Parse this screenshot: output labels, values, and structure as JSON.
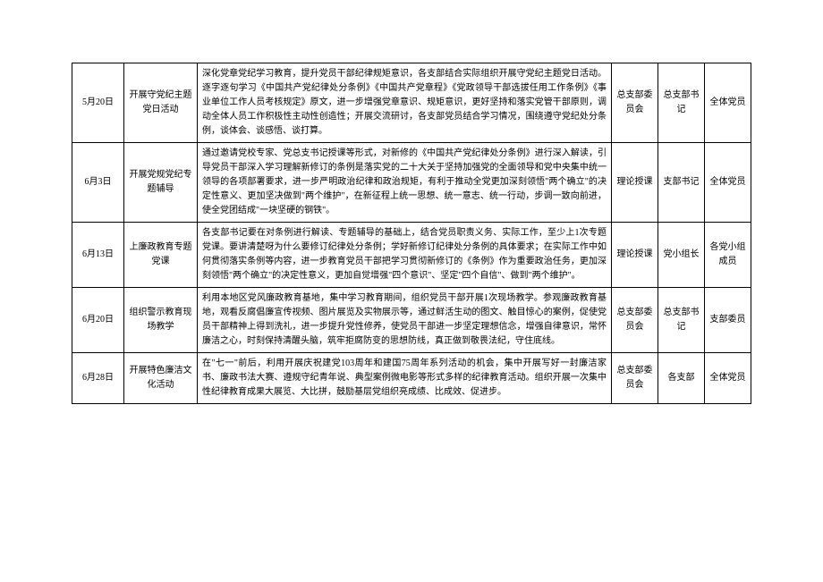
{
  "table": {
    "columns": {
      "date_width": 58,
      "activity_width": 82,
      "org_width": 52,
      "lead_width": 52,
      "part_width": 52
    },
    "styling": {
      "border_color": "#000000",
      "border_width": 1,
      "background_color": "#ffffff",
      "font_family": "SimSun",
      "font_size": 10,
      "line_height": 1.6,
      "text_color": "#000000"
    },
    "rows": [
      {
        "date": "5月20日",
        "activity": "开展守党纪主题党日活动",
        "desc": "深化党章党纪学习教育，提升党员干部纪律规矩意识，各支部结合实际组织开展守党纪主题党日活动。逐字逐句学习《中国共产党纪律处分条例》《中国共产党章程》《党政领导干部选拔任用工作条例》《事业单位工作人员考核规定》原文，进一步增强党章意识、规矩意识，更好坚持和落实党管干部原则，调动全体人员工作积极性主动性创造性；开展交流研讨，各支部党员结合学习情况，围绕遵守党纪处分条例，谈体会、谈感悟、谈打算。",
        "org": "总支部委员会",
        "lead": "总支部书记",
        "part": "全体党员"
      },
      {
        "date": "6月3日",
        "activity": "开展党规党纪专题辅导",
        "desc": "通过邀请党校专家、党总支书记授课等形式，对新修的《中国共产党纪律处分条例》进行深入解读，引导党员干部深入学习理解新修订的条例是落实党的二十大关于坚持加强党的全面领导和党中央集中统一领导的各项部署要求，进一步严明政治纪律和政治规矩，有利于推动全党更加深刻领悟\"两个确立\"的决定性意义、更加坚决做到\"两个维护\"，在新征程上统一思想、统一意志、统一行动，步调一致向前进，使全党团结成\"一块坚硬的钢铁\"。",
        "org": "理论授课",
        "lead": "支部书记",
        "part": "全体党员"
      },
      {
        "date": "6月13日",
        "activity": "上廉政教育专题党课",
        "desc": "各支部书记要在对条例进行解读、专题辅导的基础上，结合党员职责义务、实际工作，至少上1次专题党课。要讲清楚呀为什么要修订纪律处分条例；学好新修订纪律处分条例的具体要求；在实际工作中如何贯彻落实条例等内容，进一步教育党员干部把学习贯彻新修订的《条例》作为重要政治任务，更加深刻领悟\"两个确立\"的决定性意义，更加自觉增强\"四个意识\"、坚定\"四个自信\"、做到\"两个维护\"。",
        "org": "理论授课",
        "lead": "党小组长",
        "part": "各党小组成员"
      },
      {
        "date": "6月20日",
        "activity": "组织警示教育现场教学",
        "desc": "利用本地区党风廉政教育基地，集中学习教育期间，组织党员干部开展1次现场教学。参观廉政教育基地，观看反腐倡廉宣传视频、图片展览及实物展示等，通过鲜活生动的图文、触目惊心的案例，促使党员干部精神上得到洗礼，进一步提升党性修养，使党员干部进一步坚定理想信念，增强自律意识，常怀廉洁之心，时刻保持清醒头脑，筑牢拒腐防变的思想防线，真正做到敬畏法纪，守住底线。",
        "org": "总支部委员会",
        "lead": "总支部书记",
        "part": "支部委员"
      },
      {
        "date": "6月28日",
        "activity": "开展特色廉洁文化活动",
        "desc": "在\"七一\"前后，利用开展庆祝建党103周年和建国75周年系列活动的机会，集中开展写好一封廉洁家书、廉政书法大赛、遵规守纪青年说、典型案例微电影等形式多样的纪律教育活动。组织开展一次集中性纪律教育成果大展览、大比拼，鼓励基层党组织亮成绩、比成效、促进步。",
        "org": "总支部委员会",
        "lead": "各支部",
        "part": "全体党员"
      }
    ]
  }
}
